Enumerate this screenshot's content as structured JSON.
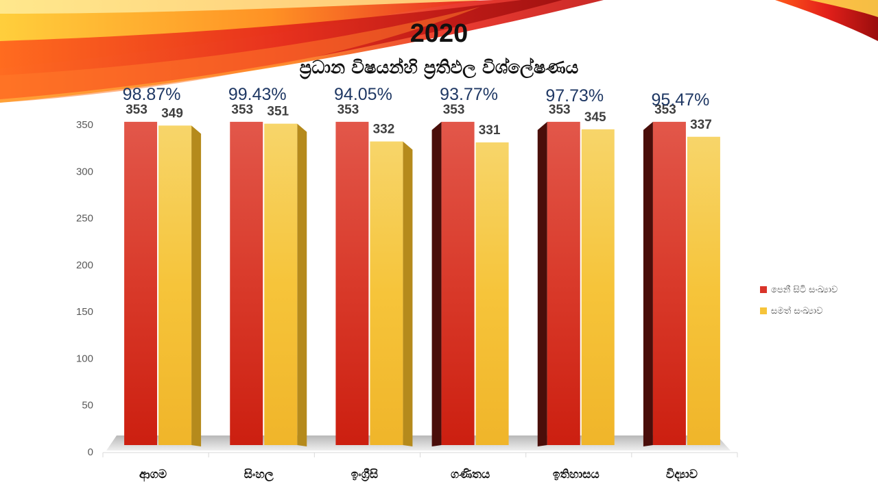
{
  "header": {
    "title": "2020",
    "subtitle": "ප්‍රධාන විෂයන්හි ප්‍රතිඵල විශ්ලේෂණය"
  },
  "colors": {
    "present": "#d9342a",
    "passed": "#f6c43a",
    "percent_text": "#1f3864",
    "axis_text": "#595959"
  },
  "chart_data": {
    "type": "bar",
    "title": "2020",
    "subtitle": "ප්‍රධාන විෂයන්හි ප්‍රතිඵල විශ්ලේෂණය",
    "categories": [
      "ආගම",
      "සිංහල",
      "ඉංග්‍රීසි",
      "ගණිතය",
      "ඉතිහාසය",
      "විද්‍යාව"
    ],
    "series": [
      {
        "name": "පෙනී සිටි සංඛ්‍යාව",
        "values": [
          353,
          353,
          353,
          353,
          353,
          353
        ]
      },
      {
        "name": "සමත් සංඛ්‍යාව",
        "values": [
          349,
          351,
          332,
          331,
          345,
          337
        ]
      }
    ],
    "pass_rates": [
      "98.87%",
      "99.43%",
      "94.05%",
      "93.77%",
      "97.73%",
      "95.47%"
    ],
    "yticks": [
      0,
      50,
      100,
      150,
      200,
      250,
      300,
      350
    ],
    "ylim": [
      0,
      350
    ],
    "legend_position": "right",
    "grid": false
  }
}
